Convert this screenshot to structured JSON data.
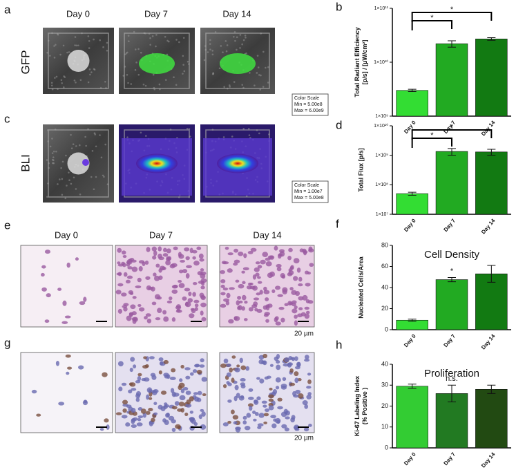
{
  "panel_labels": [
    "a",
    "b",
    "c",
    "d",
    "e",
    "f",
    "g",
    "h"
  ],
  "imaging": {
    "columns": [
      "Day 0",
      "Day 7",
      "Day 14"
    ],
    "rows": [
      "GFP",
      "BLI"
    ],
    "color_scales": [
      {
        "title": "Color Scale",
        "min": "Min = 5.00e8",
        "max": "Max = 6.00e9"
      },
      {
        "title": "Color Scale",
        "min": "Min = 1.00e7",
        "max": "Max = 5.00e8"
      }
    ]
  },
  "histology": {
    "columns": [
      "Day 0",
      "Day 7",
      "Day 14"
    ],
    "scale_bar": "20 µm"
  },
  "chart_data": [
    {
      "type": "bar",
      "categories": [
        "Day 0",
        "Day 7",
        "Day 14"
      ],
      "values": [
        3000000000,
        22000000000,
        27000000000
      ],
      "errors": [
        150000000,
        3000000000,
        1500000000
      ],
      "colors": [
        "#33dd33",
        "#22aa22",
        "#127a12"
      ],
      "log_scale": true,
      "ylim": [
        1000000000,
        100000000000
      ],
      "yticks": [
        {
          "value": 1000000000,
          "label": "1×10⁹"
        },
        {
          "value": 10000000000,
          "label": "1×10¹⁰"
        },
        {
          "value": 100000000000,
          "label": "1×10¹¹"
        }
      ],
      "ylabel": [
        "Total Radiant Efficiency",
        "[p/s] / [µW/cm²]"
      ],
      "annotations": [
        "*",
        "*"
      ],
      "annotation_style": "brackets"
    },
    {
      "type": "bar",
      "categories": [
        "Day 0",
        "Day 7",
        "Day 14"
      ],
      "values": [
        50000000,
        1350000000,
        1300000000
      ],
      "errors": [
        6000000,
        350000000,
        300000000
      ],
      "colors": [
        "#33dd33",
        "#22aa22",
        "#127a12"
      ],
      "log_scale": true,
      "ylim": [
        10000000,
        10000000000
      ],
      "yticks": [
        {
          "value": 10000000,
          "label": "1×10⁷"
        },
        {
          "value": 100000000,
          "label": "1×10⁸"
        },
        {
          "value": 1000000000,
          "label": "1×10⁹"
        },
        {
          "value": 10000000000,
          "label": "1×10¹⁰"
        }
      ],
      "ylabel": [
        "Total Flux [p/s]"
      ],
      "annotations": [
        "*",
        "*"
      ],
      "annotation_style": "brackets"
    },
    {
      "type": "bar",
      "title": "Cell Density",
      "categories": [
        "Day 0",
        "Day 7",
        "Day 14"
      ],
      "values": [
        9,
        47.5,
        53
      ],
      "errors": [
        1,
        2,
        8
      ],
      "colors": [
        "#33dd33",
        "#22aa22",
        "#127a12"
      ],
      "log_scale": false,
      "ylim": [
        0,
        80
      ],
      "yticks": [
        0,
        20,
        40,
        60,
        80
      ],
      "ylabel": [
        "Nucleated Cells/Area"
      ],
      "annotations": [
        "*"
      ],
      "annotation_style": "above"
    },
    {
      "type": "bar",
      "title": "Proliferation",
      "categories": [
        "Day 0",
        "Day 7",
        "Day 14"
      ],
      "values": [
        29.5,
        26,
        28
      ],
      "errors": [
        1,
        4,
        2
      ],
      "colors": [
        "#33cc33",
        "#227a22",
        "#224a12"
      ],
      "log_scale": false,
      "ylim": [
        0,
        40
      ],
      "yticks": [
        0,
        10,
        20,
        30,
        40
      ],
      "ylabel": [
        "Ki-67 Labeling Index",
        "(% Positive )"
      ],
      "annotations": [
        "n.s."
      ],
      "annotation_style": "above"
    }
  ]
}
